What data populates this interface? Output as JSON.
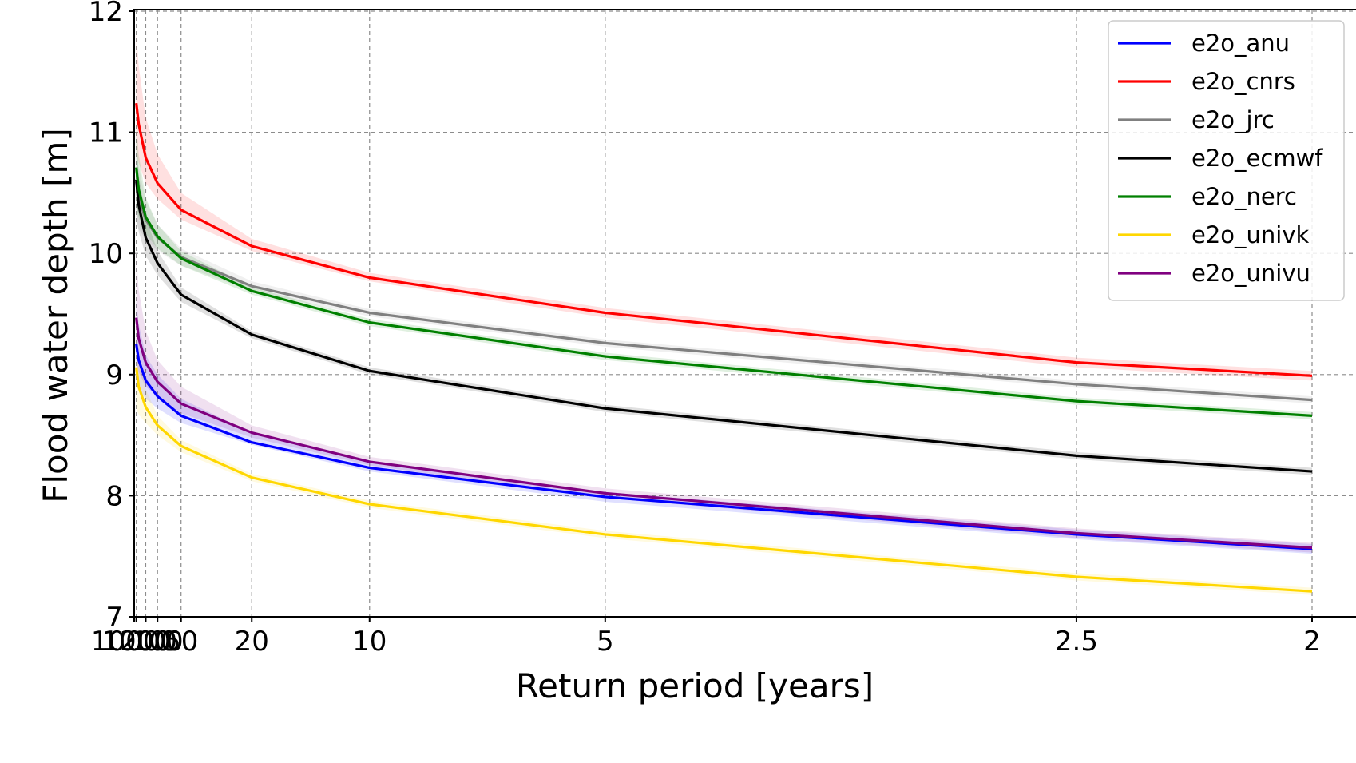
{
  "chart_data": {
    "type": "line",
    "title": "",
    "xlabel": "Return period [years]",
    "ylabel": "Flood water depth [m]",
    "xscale": "reciprocal",
    "xlim": [
      10000,
      2
    ],
    "ylim": [
      7,
      12
    ],
    "x_ticks": [
      10000,
      1000,
      200,
      100,
      50,
      20,
      10,
      5,
      2.5,
      2
    ],
    "x_tick_labels": [
      "10000",
      "1000",
      "200",
      "100",
      "50",
      "20",
      "10",
      "5",
      "2.5",
      "2"
    ],
    "y_ticks": [
      7,
      8,
      9,
      10,
      11,
      12
    ],
    "y_tick_labels": [
      "7",
      "8",
      "9",
      "10",
      "11",
      "12"
    ],
    "grid": true,
    "legend_position": "top-right",
    "x": [
      1000,
      500,
      200,
      100,
      50,
      20,
      10,
      5,
      2.5,
      2
    ],
    "series": [
      {
        "name": "e2o_anu",
        "color": "#0000ff",
        "values": [
          9.25,
          9.12,
          8.95,
          8.82,
          8.66,
          8.44,
          8.23,
          7.99,
          7.68,
          7.56
        ],
        "band_low": [
          8.9,
          8.88,
          8.8,
          8.72,
          8.6,
          8.42,
          8.2,
          7.95,
          7.64,
          7.52
        ],
        "band_high": [
          9.62,
          9.42,
          9.16,
          9.0,
          8.8,
          8.52,
          8.27,
          8.03,
          7.72,
          7.6
        ]
      },
      {
        "name": "e2o_cnrs",
        "color": "#ff0000",
        "values": [
          11.24,
          11.07,
          10.79,
          10.58,
          10.36,
          10.06,
          9.8,
          9.51,
          9.1,
          8.99
        ],
        "band_low": [
          10.85,
          10.75,
          10.58,
          10.45,
          10.28,
          10.02,
          9.77,
          9.47,
          9.06,
          8.95
        ],
        "band_high": [
          11.82,
          11.55,
          11.12,
          10.82,
          10.5,
          10.12,
          9.84,
          9.55,
          9.14,
          9.03
        ]
      },
      {
        "name": "e2o_jrc",
        "color": "#808080",
        "values": [
          10.59,
          10.46,
          10.28,
          10.13,
          9.97,
          9.73,
          9.51,
          9.26,
          8.92,
          8.79
        ],
        "band_low": [
          10.25,
          10.2,
          10.12,
          10.02,
          9.9,
          9.69,
          9.48,
          9.23,
          8.89,
          8.76
        ],
        "band_high": [
          10.95,
          10.72,
          10.44,
          10.24,
          10.04,
          9.77,
          9.54,
          9.29,
          8.95,
          8.82
        ]
      },
      {
        "name": "e2o_ecmwf",
        "color": "#000000",
        "values": [
          10.61,
          10.4,
          10.13,
          9.92,
          9.66,
          9.33,
          9.03,
          8.72,
          8.33,
          8.2
        ],
        "band_low": [
          10.3,
          10.18,
          9.98,
          9.82,
          9.6,
          9.3,
          9.0,
          8.69,
          8.3,
          8.17
        ],
        "band_high": [
          10.98,
          10.65,
          10.3,
          10.02,
          9.72,
          9.36,
          9.06,
          8.75,
          8.36,
          8.23
        ]
      },
      {
        "name": "e2o_nerc",
        "color": "#008000",
        "values": [
          10.71,
          10.53,
          10.3,
          10.14,
          9.96,
          9.69,
          9.43,
          9.15,
          8.78,
          8.66
        ],
        "band_low": [
          10.38,
          10.3,
          10.16,
          10.04,
          9.9,
          9.66,
          9.4,
          9.12,
          8.75,
          8.63
        ],
        "band_high": [
          11.08,
          10.82,
          10.46,
          10.24,
          10.02,
          9.72,
          9.46,
          9.18,
          8.81,
          8.69
        ]
      },
      {
        "name": "e2o_univk",
        "color": "#ffd700",
        "values": [
          9.06,
          8.9,
          8.73,
          8.58,
          8.41,
          8.15,
          7.93,
          7.68,
          7.33,
          7.21
        ],
        "band_low": [
          8.72,
          8.67,
          8.6,
          8.5,
          8.36,
          8.12,
          7.9,
          7.65,
          7.3,
          7.18
        ],
        "band_high": [
          9.4,
          9.16,
          8.88,
          8.66,
          8.46,
          8.18,
          7.96,
          7.71,
          7.36,
          7.24
        ]
      },
      {
        "name": "e2o_univu",
        "color": "#800080",
        "values": [
          9.47,
          9.3,
          9.1,
          8.94,
          8.76,
          8.52,
          8.28,
          8.02,
          7.69,
          7.57
        ],
        "band_low": [
          9.1,
          9.02,
          8.9,
          8.82,
          8.68,
          8.48,
          8.25,
          7.98,
          7.65,
          7.53
        ],
        "band_high": [
          9.98,
          9.7,
          9.36,
          9.12,
          8.9,
          8.58,
          8.32,
          8.06,
          7.73,
          7.61
        ]
      }
    ]
  }
}
